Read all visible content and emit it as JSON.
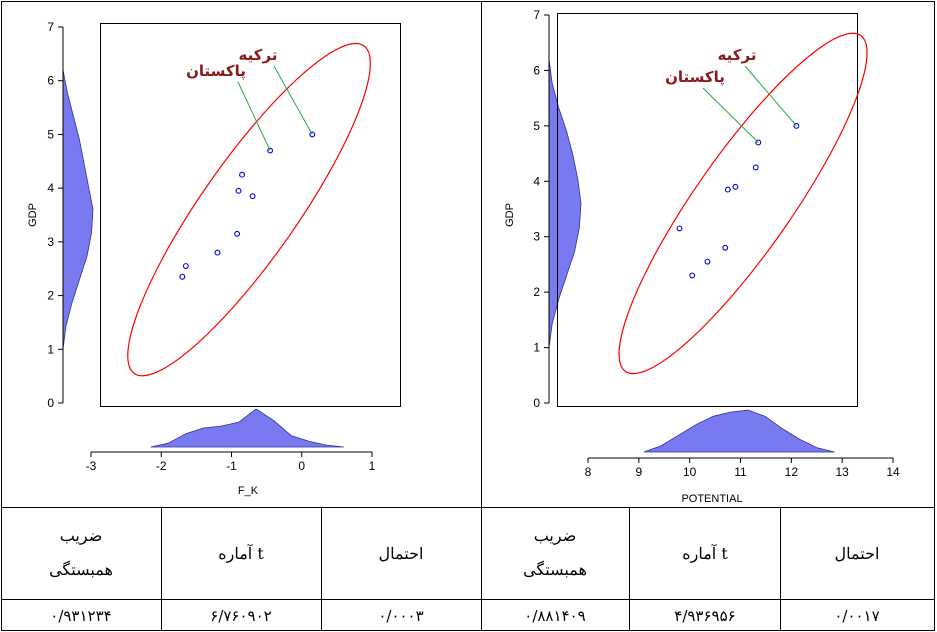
{
  "chart_data": [
    {
      "type": "scatter",
      "xlabel": "F_K",
      "ylabel": "GDP",
      "xlim": [
        -3,
        1
      ],
      "ylim": [
        0,
        7
      ],
      "x_ticks": [
        "-3",
        "-2",
        "-1",
        "0",
        "1"
      ],
      "y_ticks": [
        "0",
        "1",
        "2",
        "3",
        "4",
        "5",
        "6",
        "7"
      ],
      "points": [
        {
          "x": 0.15,
          "y": 5.0
        },
        {
          "x": -0.45,
          "y": 4.7
        },
        {
          "x": -0.85,
          "y": 4.25
        },
        {
          "x": -0.9,
          "y": 3.95
        },
        {
          "x": -0.7,
          "y": 3.85
        },
        {
          "x": -0.92,
          "y": 3.15
        },
        {
          "x": -1.2,
          "y": 2.8
        },
        {
          "x": -1.65,
          "y": 2.55
        },
        {
          "x": -1.7,
          "y": 2.35
        }
      ],
      "annotations": [
        {
          "label": "ترکیه",
          "x": 0.15,
          "y": 5.0
        },
        {
          "label": "پاکستان",
          "x": -0.45,
          "y": 4.7
        }
      ],
      "x_marginal_density": [
        0.0,
        0.1,
        0.35,
        0.5,
        0.55,
        0.65,
        1.0,
        0.7,
        0.3,
        0.15,
        0.05,
        0.0
      ],
      "y_marginal_density": [
        0.0,
        0.15,
        0.35,
        0.55,
        0.7,
        0.85,
        1.0,
        0.95,
        0.8,
        0.55,
        0.3,
        0.1,
        0.0
      ]
    },
    {
      "type": "scatter",
      "xlabel": "POTENTIAL",
      "ylabel": "GDP",
      "xlim": [
        8,
        14
      ],
      "ylim": [
        0,
        7
      ],
      "x_ticks": [
        "8",
        "9",
        "10",
        "11",
        "12",
        "13",
        "14"
      ],
      "y_ticks": [
        "0",
        "1",
        "2",
        "3",
        "4",
        "5",
        "6",
        "7"
      ],
      "points": [
        {
          "x": 12.1,
          "y": 5.0
        },
        {
          "x": 11.35,
          "y": 4.7
        },
        {
          "x": 11.3,
          "y": 4.25
        },
        {
          "x": 10.9,
          "y": 3.9
        },
        {
          "x": 10.75,
          "y": 3.85
        },
        {
          "x": 9.8,
          "y": 3.15
        },
        {
          "x": 10.7,
          "y": 2.8
        },
        {
          "x": 10.35,
          "y": 2.55
        },
        {
          "x": 10.05,
          "y": 2.3
        }
      ],
      "annotations": [
        {
          "label": "ترکیه",
          "x": 12.1,
          "y": 5.0
        },
        {
          "label": "پاکستان",
          "x": 11.35,
          "y": 4.7
        }
      ],
      "x_marginal_density": [
        0.0,
        0.15,
        0.4,
        0.65,
        0.85,
        0.95,
        1.0,
        0.85,
        0.55,
        0.3,
        0.1,
        0.0
      ],
      "y_marginal_density": [
        0.0,
        0.1,
        0.3,
        0.55,
        0.75,
        0.9,
        1.0,
        0.95,
        0.8,
        0.55,
        0.3,
        0.1,
        0.0
      ]
    }
  ],
  "table": {
    "headers": [
      "ضریب همبستگی",
      "آماره t",
      "احتمال",
      "ضریب همبستگی",
      "آماره t",
      "احتمال"
    ],
    "values": [
      "۰/۹۳۱۲۳۴",
      "۶/۷۶۰۹۰۲",
      "۰/۰۰۰۳",
      "۰/۸۸۱۴۰۹",
      "۴/۹۳۶۹۵۶",
      "۰/۰۰۱۷"
    ]
  },
  "colors": {
    "point": "#0000dd",
    "ellipse": "#ff0000",
    "leader": "#22aa44",
    "density": "#7a7af0",
    "annotation": "#8b1a1a"
  }
}
